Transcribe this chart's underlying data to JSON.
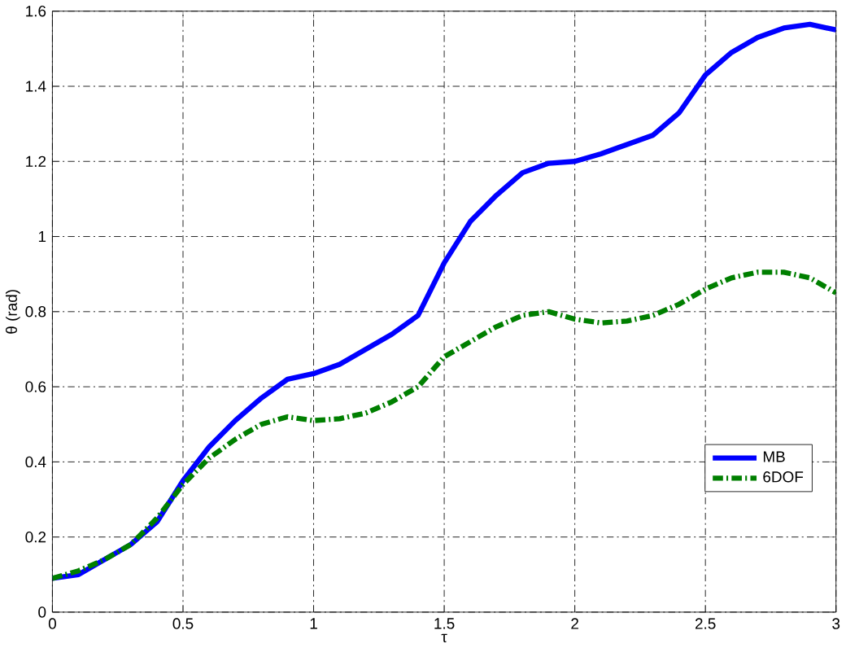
{
  "chart_data": {
    "type": "line",
    "xlabel": "τ",
    "ylabel": "θ (rad)",
    "xlim": [
      0,
      3
    ],
    "ylim": [
      0,
      1.6
    ],
    "xticks": [
      0,
      0.5,
      1,
      1.5,
      2,
      2.5,
      3
    ],
    "yticks": [
      0,
      0.2,
      0.4,
      0.6,
      0.8,
      1,
      1.2,
      1.4,
      1.6
    ],
    "grid": true,
    "legend": "bottom right",
    "x": [
      0,
      0.1,
      0.2,
      0.3,
      0.4,
      0.5,
      0.6,
      0.7,
      0.8,
      0.9,
      1.0,
      1.1,
      1.2,
      1.3,
      1.4,
      1.5,
      1.6,
      1.7,
      1.8,
      1.9,
      2.0,
      2.1,
      2.2,
      2.3,
      2.4,
      2.5,
      2.6,
      2.7,
      2.8,
      2.9,
      3.0
    ],
    "series": [
      {
        "name": "MB",
        "color": "#0000ff",
        "line_style": "solid",
        "values": [
          0.09,
          0.1,
          0.14,
          0.18,
          0.24,
          0.35,
          0.44,
          0.51,
          0.57,
          0.62,
          0.635,
          0.66,
          0.7,
          0.74,
          0.79,
          0.93,
          1.04,
          1.11,
          1.17,
          1.195,
          1.2,
          1.22,
          1.245,
          1.27,
          1.33,
          1.43,
          1.49,
          1.53,
          1.555,
          1.565,
          1.55
        ]
      },
      {
        "name": "6DOF",
        "color": "#007f00",
        "line_style": "dashdot",
        "values": [
          0.09,
          0.11,
          0.14,
          0.18,
          0.25,
          0.34,
          0.41,
          0.46,
          0.5,
          0.52,
          0.51,
          0.515,
          0.53,
          0.56,
          0.6,
          0.68,
          0.72,
          0.76,
          0.79,
          0.8,
          0.78,
          0.77,
          0.775,
          0.79,
          0.82,
          0.86,
          0.89,
          0.905,
          0.905,
          0.89,
          0.85
        ]
      }
    ]
  }
}
